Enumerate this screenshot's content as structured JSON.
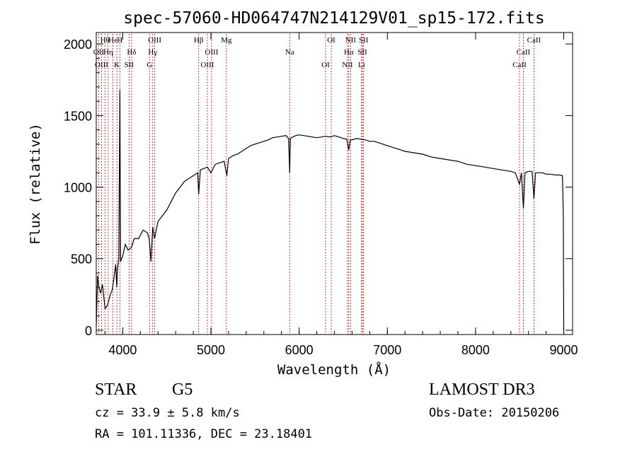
{
  "chart_data": {
    "type": "line",
    "title": "spec-57060-HD064747N214129V01_sp15-172.fits",
    "xlabel": "Wavelength (Å)",
    "ylabel": "Flux (relative)",
    "xlim": [
      3700,
      9100
    ],
    "ylim": [
      -30,
      2080
    ],
    "xticks": [
      4000,
      5000,
      6000,
      7000,
      8000,
      9000
    ],
    "yticks": [
      0,
      500,
      1000,
      1500,
      2000
    ],
    "grid": false,
    "series": [
      {
        "name": "spectrum",
        "x": [
          3700,
          3715,
          3730,
          3750,
          3770,
          3800,
          3830,
          3860,
          3880,
          3900,
          3920,
          3933,
          3940,
          3955,
          3968,
          3975,
          4000,
          4030,
          4060,
          4100,
          4130,
          4180,
          4230,
          4280,
          4300,
          4320,
          4340,
          4360,
          4400,
          4450,
          4500,
          4550,
          4600,
          4650,
          4700,
          4750,
          4800,
          4850,
          4861,
          4880,
          4920,
          4960,
          5000,
          5050,
          5100,
          5150,
          5180,
          5200,
          5250,
          5300,
          5350,
          5400,
          5450,
          5500,
          5550,
          5600,
          5650,
          5700,
          5750,
          5800,
          5850,
          5880,
          5893,
          5900,
          5930,
          5960,
          6000,
          6050,
          6100,
          6150,
          6200,
          6250,
          6300,
          6350,
          6400,
          6450,
          6500,
          6540,
          6563,
          6580,
          6600,
          6650,
          6700,
          6750,
          6800,
          6850,
          6900,
          6950,
          7000,
          7050,
          7100,
          7150,
          7200,
          7300,
          7400,
          7500,
          7600,
          7700,
          7800,
          7900,
          8000,
          8100,
          8200,
          8300,
          8400,
          8450,
          8498,
          8520,
          8542,
          8560,
          8600,
          8640,
          8662,
          8680,
          8720,
          8760,
          8800,
          8850,
          8900,
          8950,
          8985,
          8995,
          9000
        ],
        "y": [
          30,
          380,
          300,
          260,
          320,
          150,
          180,
          250,
          280,
          360,
          460,
          300,
          420,
          500,
          1680,
          480,
          520,
          600,
          560,
          580,
          640,
          640,
          700,
          680,
          640,
          480,
          720,
          640,
          760,
          800,
          840,
          900,
          960,
          1000,
          1040,
          1060,
          1080,
          1100,
          950,
          1120,
          1130,
          1140,
          1100,
          1160,
          1170,
          1180,
          1080,
          1200,
          1220,
          1230,
          1250,
          1270,
          1290,
          1300,
          1310,
          1320,
          1330,
          1345,
          1350,
          1355,
          1360,
          1340,
          1100,
          1340,
          1350,
          1360,
          1365,
          1360,
          1355,
          1350,
          1345,
          1350,
          1355,
          1350,
          1360,
          1350,
          1340,
          1335,
          1260,
          1330,
          1330,
          1340,
          1335,
          1330,
          1320,
          1320,
          1310,
          1300,
          1290,
          1280,
          1270,
          1260,
          1250,
          1240,
          1230,
          1210,
          1200,
          1190,
          1180,
          1160,
          1150,
          1140,
          1130,
          1120,
          1110,
          1100,
          1020,
          1100,
          850,
          1100,
          1110,
          1110,
          920,
          1100,
          1100,
          1100,
          1090,
          1090,
          1085,
          1085,
          1080,
          800,
          0
        ]
      }
    ],
    "lines": [
      {
        "label": "Hθ",
        "x": 3798
      },
      {
        "label": "OII",
        "x": 3727
      },
      {
        "label": "OIII",
        "x": 3760
      },
      {
        "label": "He",
        "x": 3889
      },
      {
        "label": "Hη",
        "x": 3835
      },
      {
        "label": "K",
        "x": 3934
      },
      {
        "label": "H",
        "x": 3968
      },
      {
        "label": "Hδ",
        "x": 4101
      },
      {
        "label": "SII",
        "x": 4072
      },
      {
        "label": "OIII",
        "x": 4363
      },
      {
        "label": "Hγ",
        "x": 4340
      },
      {
        "label": "G",
        "x": 4304
      },
      {
        "label": "Hβ",
        "x": 4861
      },
      {
        "label": "OIII",
        "x": 5007
      },
      {
        "label": "OIII",
        "x": 4959
      },
      {
        "label": "Mg",
        "x": 5175
      },
      {
        "label": "Na",
        "x": 5893
      },
      {
        "label": "OI",
        "x": 6300
      },
      {
        "label": "OI",
        "x": 6364
      },
      {
        "label": "Hα",
        "x": 6563
      },
      {
        "label": "NII",
        "x": 6548
      },
      {
        "label": "NII",
        "x": 6583
      },
      {
        "label": "SII",
        "x": 6717
      },
      {
        "label": "Li",
        "x": 6708
      },
      {
        "label": "SII",
        "x": 6731
      },
      {
        "label": "CaII",
        "x": 8542
      },
      {
        "label": "CaII",
        "x": 8498
      },
      {
        "label": "CaII",
        "x": 8662
      }
    ]
  },
  "info": {
    "class": "STAR",
    "subclass": "G5",
    "survey": "LAMOST DR3",
    "redshift": "cz =  33.9 ± 5.8 km/s",
    "obs_date": "Obs-Date: 20150206",
    "coords": "RA = 101.11336, DEC =  23.18401"
  },
  "colors": {
    "spectrum": "#000000",
    "line_markers": "#cc0000",
    "axis": "#000000"
  }
}
